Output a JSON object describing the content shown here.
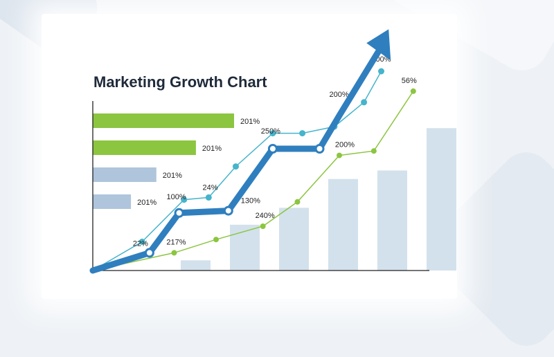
{
  "title": "Marketing Growth Chart",
  "chart_data": {
    "type": "bar",
    "title": "Marketing Growth Chart",
    "colors": {
      "hbar_green": "#8cc540",
      "hbar_blue": "#aec5dc",
      "vbar": "#d3e1ec",
      "arrow": "#2f7fbf",
      "line_teal": "#45b4cc",
      "line_green": "#8cc540",
      "axis": "#222222"
    },
    "horizontal_bars": [
      {
        "value": 201,
        "label": "201%",
        "color": "green"
      },
      {
        "value": 201,
        "label": "201%",
        "color": "green"
      },
      {
        "value": 201,
        "label": "201%",
        "color": "blue"
      },
      {
        "value": 201,
        "label": "201%",
        "color": "blue"
      }
    ],
    "horizontal_bar_lengths": [
      1.0,
      0.73,
      0.45,
      0.27
    ],
    "vertical_bars": [
      0.0,
      0.06,
      0.27,
      0.37,
      0.54,
      0.59,
      0.84
    ],
    "arrow_line": {
      "points": [
        [
          0.0,
          0.0
        ],
        [
          0.23,
          0.08
        ],
        [
          0.35,
          0.26
        ],
        [
          0.55,
          0.27
        ],
        [
          0.73,
          0.55
        ],
        [
          0.92,
          0.55
        ],
        [
          1.0,
          0.7
        ],
        [
          1.2,
          1.09
        ]
      ],
      "markers": [
        1,
        2,
        3,
        4,
        5
      ],
      "labels": [
        {
          "text": "22%",
          "point": 1
        },
        {
          "text": "100%",
          "point": 2
        },
        {
          "text": "130%",
          "point": 3
        },
        {
          "text": "250%",
          "point": 4
        }
      ]
    },
    "teal_line": {
      "points": [
        [
          0.0,
          0.0
        ],
        [
          0.2,
          0.13
        ],
        [
          0.37,
          0.32
        ],
        [
          0.47,
          0.33
        ],
        [
          0.58,
          0.47
        ],
        [
          0.73,
          0.62
        ],
        [
          0.85,
          0.62
        ],
        [
          0.98,
          0.65
        ],
        [
          1.1,
          0.76
        ],
        [
          1.17,
          0.9
        ]
      ],
      "labels": [
        {
          "text": "24%",
          "point": 4
        },
        {
          "text": "200%",
          "point": 8
        },
        {
          "text": "200%",
          "point": 9
        }
      ]
    },
    "green_line": {
      "points": [
        [
          0.0,
          0.0
        ],
        [
          0.33,
          0.08
        ],
        [
          0.5,
          0.14
        ],
        [
          0.69,
          0.2
        ],
        [
          0.83,
          0.31
        ],
        [
          1.0,
          0.52
        ],
        [
          1.14,
          0.54
        ],
        [
          1.3,
          0.81
        ]
      ],
      "labels": [
        {
          "text": "217%",
          "point": 1
        },
        {
          "text": "240%",
          "point": 3
        },
        {
          "text": "200%",
          "point": 5
        },
        {
          "text": "56%",
          "point": 7
        }
      ]
    }
  }
}
